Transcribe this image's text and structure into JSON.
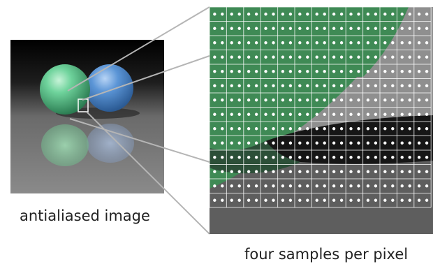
{
  "captions": {
    "left": "antialiased image",
    "right": "four samples per pixel"
  },
  "grid": {
    "cols": 13,
    "rows": 14,
    "samples_per_pixel": 4
  },
  "colors": {
    "green_region": "#3f8a55",
    "gray_region": "#8f8f8f",
    "dark_shadow": "#161616",
    "floor_gray": "#5e5e5e",
    "grid_line": "#ffffff",
    "sample_dot": "#ffffff",
    "connector_line": "#b5b5b5",
    "green_sphere": "#4fc08a",
    "blue_sphere": "#4f86c8"
  }
}
